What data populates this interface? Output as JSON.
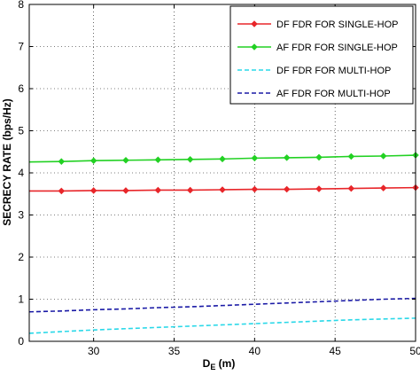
{
  "chart_data": {
    "type": "line",
    "title": "",
    "xlabel": "D",
    "xlabel_sub": "E",
    "xlabel_unit": " (m)",
    "ylabel": "SECRECY RATE (bps/Hz)",
    "xlim": [
      26,
      50
    ],
    "ylim": [
      0,
      8
    ],
    "xticks": [
      30,
      35,
      40,
      45,
      50
    ],
    "yticks": [
      0,
      1,
      2,
      3,
      4,
      5,
      6,
      7,
      8
    ],
    "grid": true,
    "legend_position": "top-right",
    "series": [
      {
        "name": "DF FDR FOR SINGLE-HOP",
        "color": "#e8262a",
        "style": "solid",
        "marker": "diamond",
        "x": [
          26,
          28,
          30,
          32,
          34,
          36,
          38,
          40,
          42,
          44,
          46,
          48,
          50
        ],
        "y": [
          3.57,
          3.57,
          3.58,
          3.58,
          3.59,
          3.59,
          3.6,
          3.61,
          3.61,
          3.62,
          3.63,
          3.64,
          3.65
        ],
        "marker_x": [
          28,
          30,
          32,
          34,
          36,
          38,
          40,
          42,
          44,
          46,
          48,
          50
        ]
      },
      {
        "name": "AF FDR FOR SINGLE-HOP",
        "color": "#22d123",
        "style": "solid",
        "marker": "diamond",
        "x": [
          26,
          28,
          30,
          32,
          34,
          36,
          38,
          40,
          42,
          44,
          46,
          48,
          50
        ],
        "y": [
          4.26,
          4.27,
          4.29,
          4.3,
          4.31,
          4.32,
          4.33,
          4.35,
          4.36,
          4.37,
          4.39,
          4.4,
          4.42
        ],
        "marker_x": [
          28,
          30,
          32,
          34,
          36,
          38,
          40,
          42,
          44,
          46,
          48,
          50
        ]
      },
      {
        "name": "DF FDR FOR MULTI-HOP",
        "color": "#29d8e8",
        "style": "dashed",
        "marker": "none",
        "x": [
          26,
          28,
          30,
          32,
          34,
          36,
          38,
          40,
          42,
          44,
          46,
          48,
          50
        ],
        "y": [
          0.19,
          0.23,
          0.27,
          0.3,
          0.33,
          0.36,
          0.39,
          0.42,
          0.45,
          0.48,
          0.51,
          0.53,
          0.55
        ]
      },
      {
        "name": "AF FDR FOR MULTI-HOP",
        "color": "#1a1aa6",
        "style": "dashed",
        "marker": "none",
        "x": [
          26,
          28,
          30,
          32,
          34,
          36,
          38,
          40,
          42,
          44,
          46,
          48,
          50
        ],
        "y": [
          0.7,
          0.72,
          0.75,
          0.77,
          0.8,
          0.82,
          0.85,
          0.88,
          0.91,
          0.94,
          0.97,
          1.0,
          1.02
        ]
      }
    ]
  }
}
